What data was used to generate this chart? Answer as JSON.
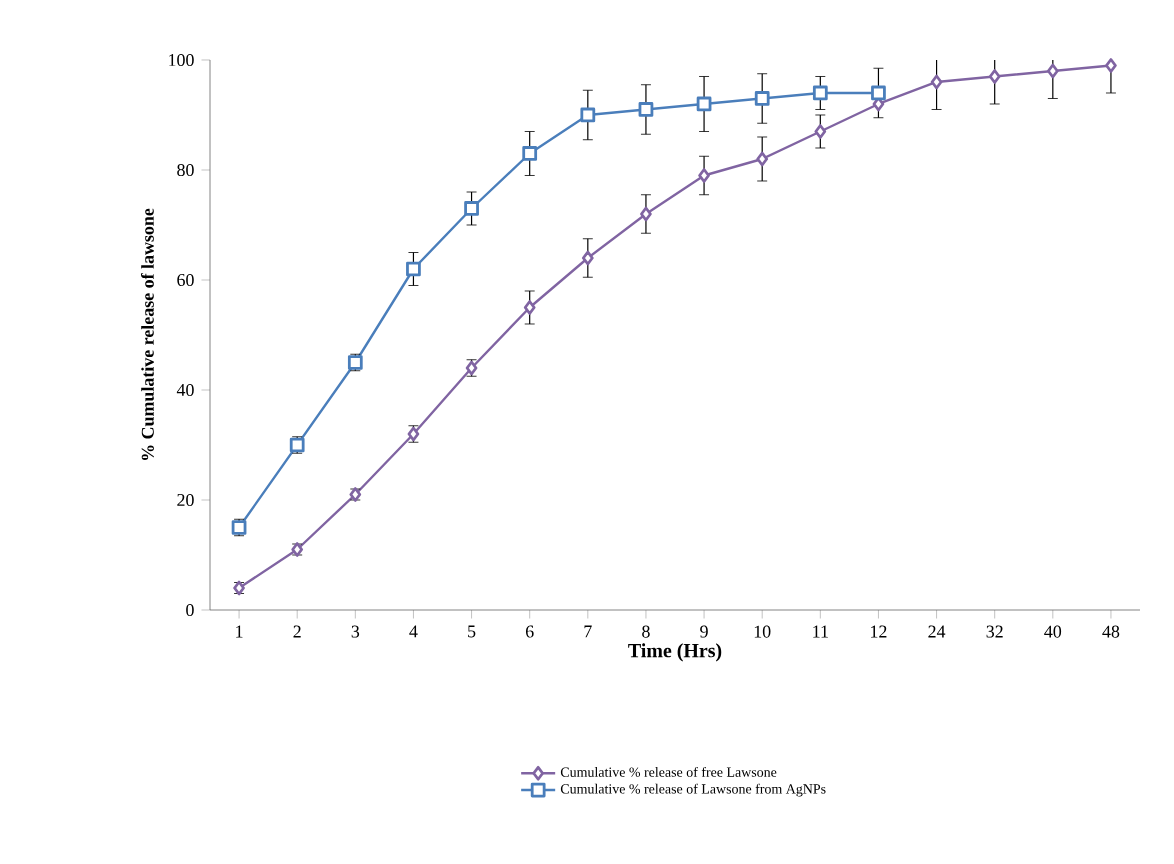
{
  "chart_data": {
    "type": "line",
    "xlabel": "Time (Hrs)",
    "ylabel": "% Cumulative  release of lawsone",
    "categories": [
      "1",
      "2",
      "3",
      "4",
      "5",
      "6",
      "7",
      "8",
      "9",
      "10",
      "11",
      "12",
      "24",
      "32",
      "40",
      "48"
    ],
    "series": [
      {
        "name": "Cumulative % release of free Lawsone",
        "color": "#8064a2",
        "marker": "diamond",
        "values": [
          4,
          11,
          21,
          32,
          44,
          55,
          64,
          72,
          79,
          82,
          87,
          92,
          96,
          97,
          98,
          99
        ],
        "errors": [
          1,
          1,
          1,
          1.5,
          1.5,
          3,
          3.5,
          3.5,
          3.5,
          4,
          3,
          null,
          5,
          5,
          5,
          5
        ]
      },
      {
        "name": "Cumulative % release of Lawsone from AgNPs",
        "color": "#4a7ebb",
        "marker": "square",
        "values": [
          15,
          30,
          45,
          62,
          73,
          83,
          90,
          91,
          92,
          93,
          94,
          94,
          null,
          null,
          null,
          null
        ],
        "errors": [
          1.5,
          1.5,
          1.5,
          3,
          3,
          4,
          4.5,
          4.5,
          5,
          4.5,
          3,
          4.5,
          null,
          null,
          null,
          null
        ]
      }
    ],
    "ylim": [
      0,
      100
    ],
    "yticks": [
      0,
      20,
      40,
      60,
      80,
      100
    ],
    "legend": "bottom",
    "grid": false
  }
}
